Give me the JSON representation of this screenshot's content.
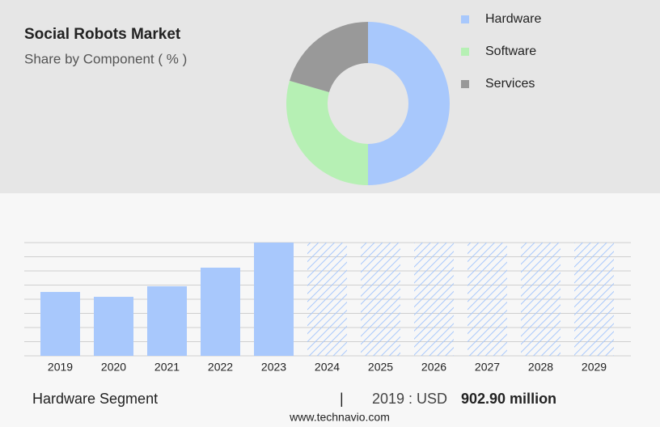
{
  "chart_data": [
    {
      "type": "donut",
      "title": "Social Robots Market",
      "subtitle": "Share by Component ( % )",
      "categories": [
        "Hardware",
        "Software",
        "Services"
      ],
      "values": [
        50,
        29.5,
        20.5
      ],
      "colors": [
        "#a8c8fc",
        "#b6f0b4",
        "#999999"
      ],
      "legend": "right"
    },
    {
      "type": "bar",
      "categories": [
        "2019",
        "2020",
        "2021",
        "2022",
        "2023",
        "2024",
        "2025",
        "2026",
        "2027",
        "2028",
        "2029"
      ],
      "values": [
        902.9,
        834,
        983,
        1246,
        1600,
        null,
        null,
        null,
        null,
        null,
        null
      ],
      "color": "#a8c8fc",
      "ylim": [
        0,
        1600
      ],
      "yticks": [
        0,
        200,
        400,
        600,
        800,
        1000,
        1200,
        1400,
        1600
      ],
      "grid": true
    }
  ],
  "footer": {
    "segment": "Hardware Segment",
    "separator": "|",
    "year_label": "2019 : USD",
    "value_text": "902.90 million",
    "source": "www.technavio.com"
  }
}
